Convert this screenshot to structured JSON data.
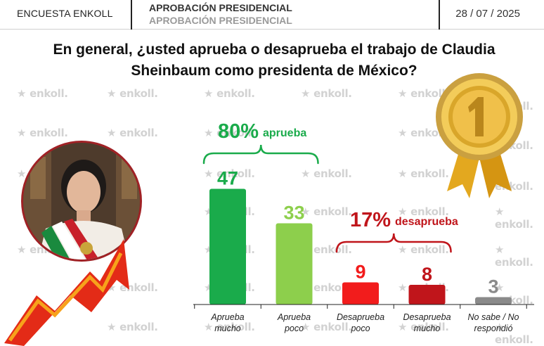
{
  "header": {
    "brand": "ENCUESTA ENKOLL",
    "title": "APROBACIÓN PRESIDENCIAL",
    "subtitle": "APROBACIÓN PRESIDENCIAL",
    "date": "28 / 07 / 2025"
  },
  "question": {
    "line1": "En general, ¿usted aprueba o desaprueba el trabajo de Claudia",
    "line2": "Sheinbaum como presidenta de México?"
  },
  "watermark": "enkoll.",
  "colors": {
    "aprueba_mucho": "#1aab4b",
    "aprueba_poco": "#8dcf4c",
    "desaprueba_poco": "#f21c1c",
    "desaprueba_mucho": "#c0151b",
    "no_sabe": "#8a8a8a",
    "green_label": "#1aab4b",
    "red_label": "#c0151b",
    "header_rule": "#222222"
  },
  "chart_data": {
    "type": "bar",
    "categories": [
      [
        "Aprueba",
        "mucho"
      ],
      [
        "Aprueba",
        "poco"
      ],
      [
        "Desaprueba",
        "poco"
      ],
      [
        "Desaprueba",
        "mucho"
      ],
      [
        "No sabe / No",
        "respondió"
      ]
    ],
    "values": [
      47,
      33,
      9,
      8,
      3
    ],
    "ylim": [
      0,
      50
    ],
    "groups": [
      {
        "value": "80%",
        "label": "aprueba",
        "categories": [
          0,
          1
        ]
      },
      {
        "value": "17%",
        "label": "desaprueba",
        "categories": [
          2,
          3
        ]
      }
    ]
  }
}
